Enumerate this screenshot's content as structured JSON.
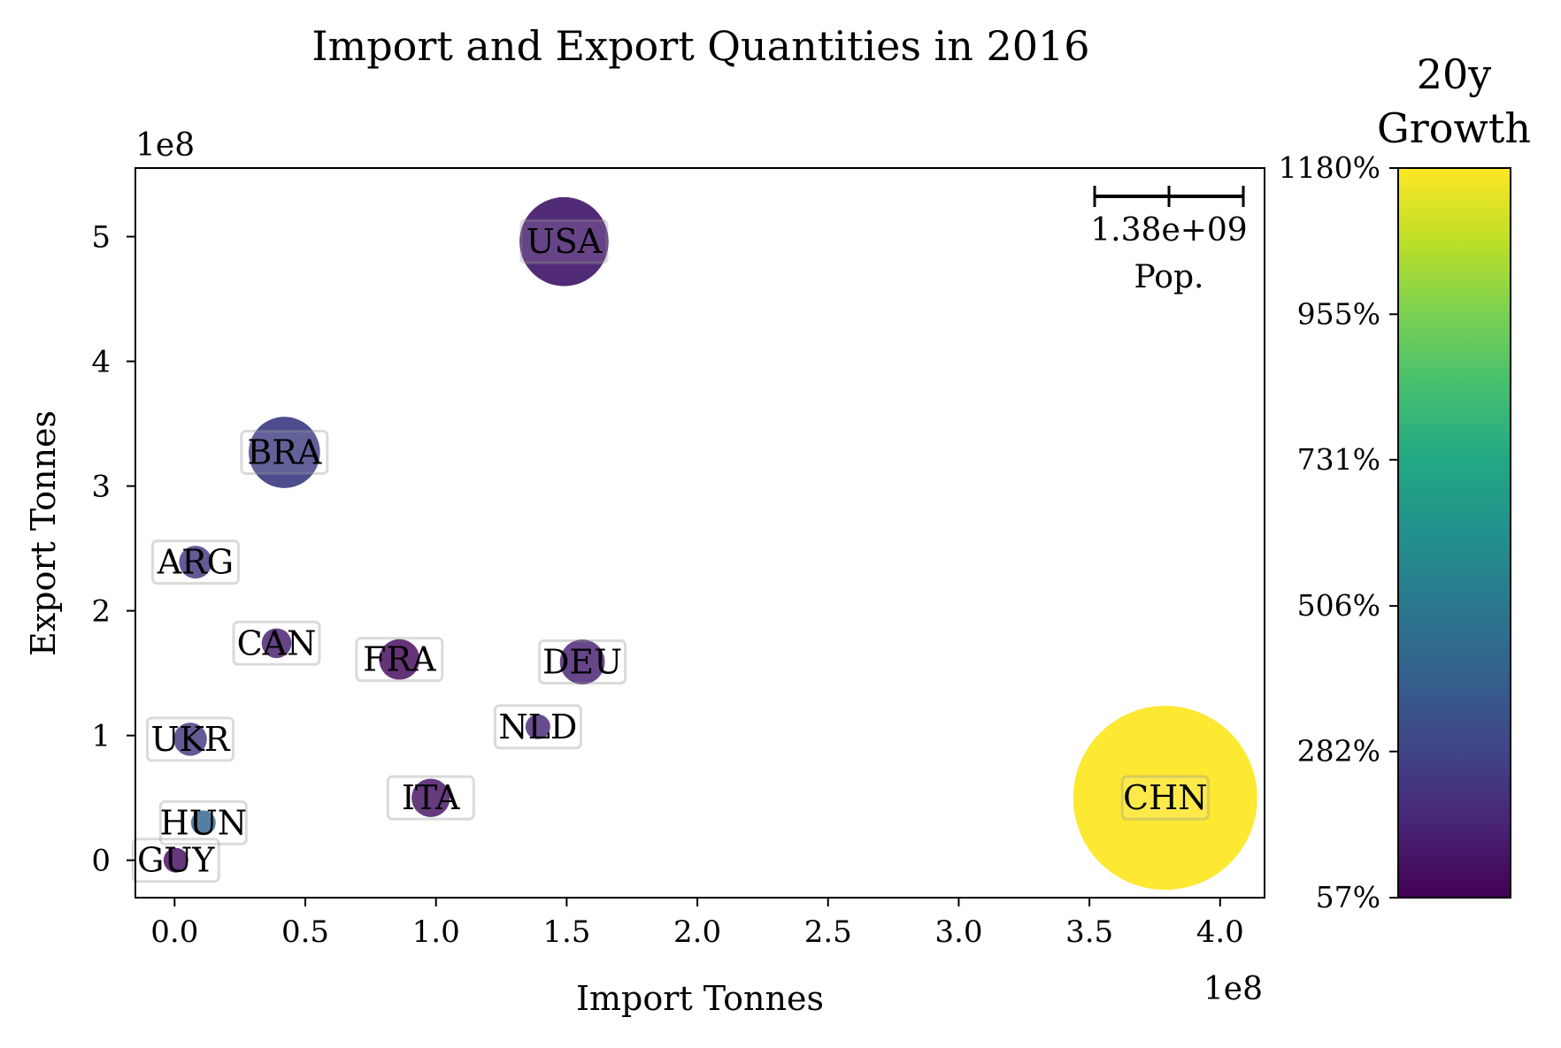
{
  "chart_data": {
    "type": "scatter",
    "title": "Import and Export Quantities in 2016",
    "xlabel": "Import Tonnes",
    "ylabel": "Export Tonnes",
    "x_offset_label": "1e8",
    "y_offset_label": "1e8",
    "xlim": [
      -0.15,
      4.17
    ],
    "ylim": [
      -0.3,
      5.55
    ],
    "xticks": [
      0.0,
      0.5,
      1.0,
      1.5,
      2.0,
      2.5,
      3.0,
      3.5,
      4.0
    ],
    "xtick_labels": [
      "0.0",
      "0.5",
      "1.0",
      "1.5",
      "2.0",
      "2.5",
      "3.0",
      "3.5",
      "4.0"
    ],
    "yticks": [
      0,
      1,
      2,
      3,
      4,
      5
    ],
    "ytick_labels": [
      "0",
      "1",
      "2",
      "3",
      "4",
      "5"
    ],
    "grid": false,
    "size_encoding": "Population",
    "color_encoding": "20y Growth (%)",
    "points": [
      {
        "label": "USA",
        "x": 1.49,
        "y": 4.96,
        "population": 323000000,
        "growth": 150
      },
      {
        "label": "BRA",
        "x": 0.42,
        "y": 3.27,
        "population": 207000000,
        "growth": 270
      },
      {
        "label": "ARG",
        "x": 0.08,
        "y": 2.39,
        "population": 44000000,
        "growth": 240
      },
      {
        "label": "CAN",
        "x": 0.39,
        "y": 1.74,
        "population": 36000000,
        "growth": 150
      },
      {
        "label": "FRA",
        "x": 0.86,
        "y": 1.61,
        "population": 67000000,
        "growth": 80
      },
      {
        "label": "DEU",
        "x": 1.56,
        "y": 1.59,
        "population": 82000000,
        "growth": 160
      },
      {
        "label": "NLD",
        "x": 1.39,
        "y": 1.07,
        "population": 17000000,
        "growth": 180
      },
      {
        "label": "UKR",
        "x": 0.06,
        "y": 0.97,
        "population": 45000000,
        "growth": 240
      },
      {
        "label": "ITA",
        "x": 0.98,
        "y": 0.5,
        "population": 60000000,
        "growth": 110
      },
      {
        "label": "HUN",
        "x": 0.11,
        "y": 0.3,
        "population": 10000000,
        "growth": 420
      },
      {
        "label": "GUY",
        "x": 0.005,
        "y": 0.0,
        "population": 800000,
        "growth": 100
      },
      {
        "label": "CHN",
        "x": 3.79,
        "y": 0.5,
        "population": 1380000000,
        "growth": 1180
      }
    ],
    "colorbar": {
      "title_line1": "20y",
      "title_line2": "Growth",
      "min": 57,
      "max": 1180,
      "colormap": "viridis",
      "tick_values": [
        57,
        282,
        506,
        731,
        955,
        1180
      ],
      "tick_labels": [
        "57%",
        "282%",
        "506%",
        "731%",
        "955%",
        "1180%"
      ]
    },
    "size_legend": {
      "value_label": "1.38e+09",
      "caption": "Pop."
    }
  }
}
